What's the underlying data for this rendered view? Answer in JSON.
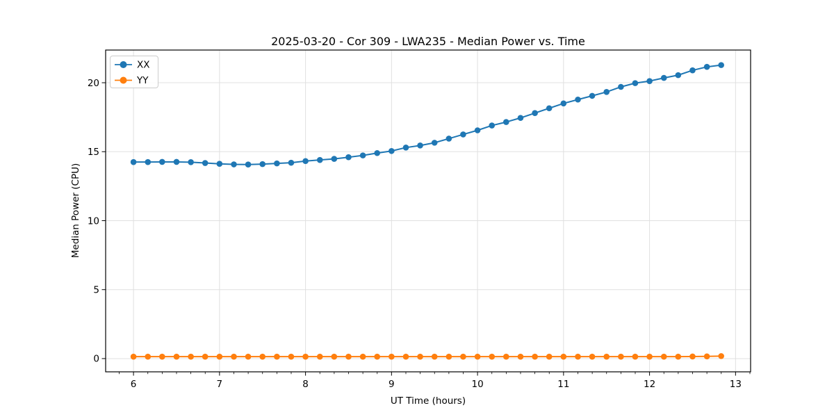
{
  "chart_data": {
    "type": "line",
    "title": "2025-03-20 - Cor 309 - LWA235 - Median Power vs. Time",
    "xlabel": "UT Time (hours)",
    "ylabel": "Median Power (CPU)",
    "xlim": [
      5.676,
      13.175
    ],
    "ylim": [
      -0.96,
      22.37
    ],
    "x_major_ticks": [
      6,
      7,
      8,
      9,
      10,
      11,
      12,
      13
    ],
    "x_minor_tick_step": 0.16667,
    "y_major_ticks": [
      0,
      5,
      10,
      15,
      20
    ],
    "grid": true,
    "legend_position": "upper-left",
    "colors": {
      "grid": "#e0e0e0",
      "axis": "#000000",
      "text": "#000000",
      "background": "#ffffff",
      "legend_border": "#cccccc"
    },
    "x": [
      6.0,
      6.167,
      6.333,
      6.5,
      6.667,
      6.833,
      7.0,
      7.167,
      7.333,
      7.5,
      7.667,
      7.833,
      8.0,
      8.167,
      8.333,
      8.5,
      8.667,
      8.833,
      9.0,
      9.167,
      9.333,
      9.5,
      9.667,
      9.833,
      10.0,
      10.167,
      10.333,
      10.5,
      10.667,
      10.833,
      11.0,
      11.167,
      11.333,
      11.5,
      11.667,
      11.833,
      12.0,
      12.167,
      12.333,
      12.5,
      12.667,
      12.833
    ],
    "series": [
      {
        "name": "XX",
        "color": "#1f77b4",
        "values": [
          14.25,
          14.25,
          14.26,
          14.26,
          14.24,
          14.18,
          14.12,
          14.08,
          14.07,
          14.1,
          14.15,
          14.2,
          14.32,
          14.4,
          14.48,
          14.6,
          14.73,
          14.9,
          15.05,
          15.3,
          15.45,
          15.65,
          15.95,
          16.25,
          16.55,
          16.9,
          17.15,
          17.45,
          17.8,
          18.15,
          18.5,
          18.78,
          19.05,
          19.33,
          19.7,
          19.97,
          20.12,
          20.35,
          20.55,
          20.9,
          21.15,
          21.28
        ]
      },
      {
        "name": "YY",
        "color": "#ff7f0e",
        "values": [
          0.14,
          0.14,
          0.14,
          0.14,
          0.14,
          0.14,
          0.14,
          0.14,
          0.14,
          0.14,
          0.14,
          0.14,
          0.14,
          0.14,
          0.14,
          0.14,
          0.14,
          0.14,
          0.14,
          0.14,
          0.14,
          0.14,
          0.14,
          0.14,
          0.14,
          0.14,
          0.14,
          0.14,
          0.14,
          0.14,
          0.14,
          0.14,
          0.14,
          0.14,
          0.14,
          0.14,
          0.14,
          0.14,
          0.14,
          0.15,
          0.16,
          0.18
        ]
      }
    ]
  }
}
